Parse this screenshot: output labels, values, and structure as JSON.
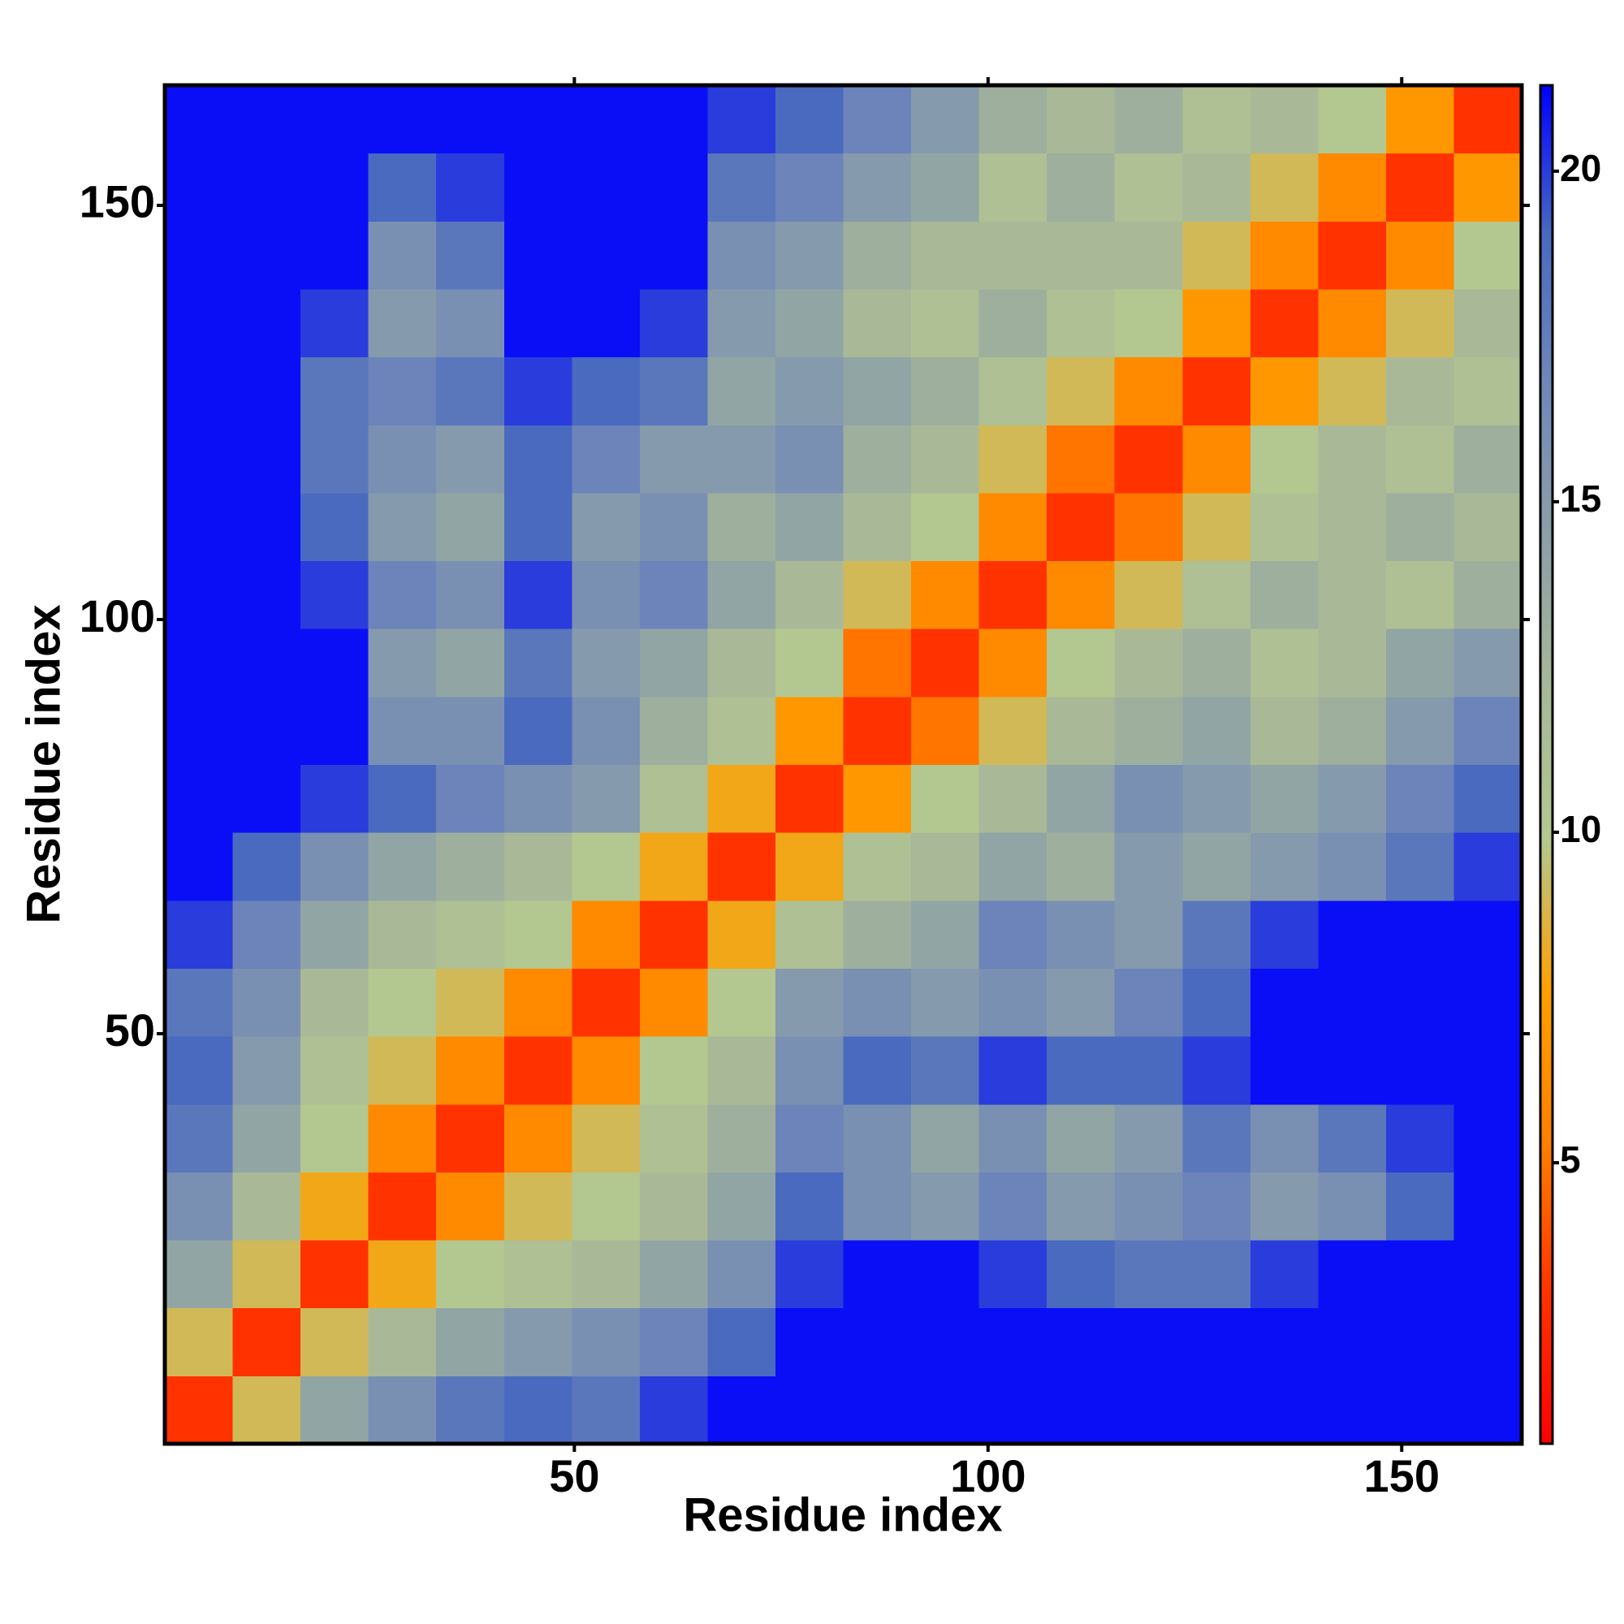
{
  "chart_data": {
    "type": "heatmap",
    "xlabel": "Residue index",
    "ylabel": "Residue index",
    "xlim": [
      0.5,
      164.5
    ],
    "ylim": [
      0.5,
      164.5
    ],
    "xticks": [
      50,
      100,
      150
    ],
    "yticks": [
      50,
      100,
      150
    ],
    "zlim": [
      0.75,
      21.3
    ],
    "zticks": [
      5,
      10,
      15,
      20
    ],
    "colors": [
      "#ff0000",
      "#ff3300",
      "#ff8000",
      "#ffa000",
      "#b4c890",
      "#a8b898",
      "#8ca0a8",
      "#7088b8",
      "#4a6ac0",
      "#0000ff"
    ],
    "z": [
      [
        3,
        9,
        14,
        16,
        18,
        19,
        18,
        20,
        21,
        21,
        21,
        21,
        21,
        21,
        21,
        21,
        21,
        21,
        21,
        21
      ],
      [
        9,
        3,
        9,
        12,
        14,
        15,
        16,
        17,
        19,
        21,
        21,
        21,
        21,
        21,
        21,
        21,
        21,
        21,
        21,
        21
      ],
      [
        14,
        9,
        3,
        8,
        10,
        11,
        12,
        14,
        16,
        20,
        21,
        21,
        20,
        19,
        18,
        18,
        20,
        21,
        21,
        21
      ],
      [
        16,
        12,
        8,
        3,
        6,
        9,
        10,
        12,
        14,
        19,
        16,
        15,
        17,
        15,
        16,
        17,
        15,
        16,
        19,
        21
      ],
      [
        18,
        14,
        10,
        6,
        3,
        6,
        9,
        11,
        13,
        17,
        16,
        14,
        16,
        14,
        15,
        18,
        16,
        18,
        20,
        21
      ],
      [
        19,
        15,
        11,
        9,
        6,
        3,
        6,
        10,
        12,
        16,
        19,
        18,
        20,
        19,
        19,
        20,
        21,
        21,
        21,
        21
      ],
      [
        18,
        16,
        12,
        10,
        9,
        6,
        3,
        6,
        10,
        15,
        16,
        15,
        16,
        15,
        17,
        19,
        21,
        21,
        21,
        21
      ],
      [
        20,
        17,
        14,
        12,
        11,
        10,
        6,
        3,
        8,
        11,
        13,
        14,
        17,
        16,
        15,
        18,
        20,
        21,
        21,
        21
      ],
      [
        21,
        19,
        16,
        14,
        13,
        12,
        10,
        8,
        3,
        8,
        11,
        12,
        14,
        13,
        15,
        14,
        15,
        16,
        18,
        20
      ],
      [
        21,
        21,
        20,
        19,
        17,
        16,
        15,
        11,
        8,
        3,
        7,
        10,
        12,
        14,
        16,
        15,
        14,
        15,
        17,
        19
      ],
      [
        21,
        21,
        21,
        16,
        16,
        19,
        16,
        13,
        11,
        7,
        3,
        5,
        9,
        12,
        13,
        14,
        12,
        13,
        15,
        17
      ],
      [
        21,
        21,
        21,
        15,
        14,
        18,
        15,
        14,
        12,
        10,
        5,
        3,
        6,
        10,
        12,
        13,
        11,
        12,
        14,
        15
      ],
      [
        21,
        21,
        20,
        17,
        16,
        20,
        16,
        17,
        14,
        12,
        9,
        6,
        3,
        6,
        9,
        11,
        13,
        12,
        11,
        13
      ],
      [
        21,
        21,
        19,
        15,
        14,
        19,
        15,
        16,
        13,
        14,
        12,
        10,
        6,
        3,
        5,
        9,
        11,
        12,
        13,
        12
      ],
      [
        21,
        21,
        18,
        16,
        15,
        19,
        17,
        15,
        15,
        16,
        13,
        12,
        9,
        5,
        3,
        6,
        10,
        12,
        11,
        13
      ],
      [
        21,
        21,
        18,
        17,
        18,
        20,
        19,
        18,
        14,
        15,
        14,
        13,
        11,
        9,
        6,
        3,
        7,
        9,
        12,
        11
      ],
      [
        21,
        21,
        20,
        15,
        16,
        21,
        21,
        20,
        15,
        14,
        12,
        11,
        13,
        11,
        10,
        7,
        3,
        6,
        9,
        12
      ],
      [
        21,
        21,
        21,
        16,
        18,
        21,
        21,
        21,
        16,
        15,
        13,
        12,
        12,
        12,
        12,
        9,
        6,
        3,
        6,
        10
      ],
      [
        21,
        21,
        21,
        19,
        20,
        21,
        21,
        21,
        18,
        17,
        15,
        14,
        11,
        13,
        11,
        12,
        9,
        6,
        3,
        7
      ],
      [
        21,
        21,
        21,
        21,
        21,
        21,
        21,
        21,
        20,
        19,
        17,
        15,
        13,
        12,
        13,
        11,
        12,
        10,
        7,
        3
      ]
    ]
  }
}
